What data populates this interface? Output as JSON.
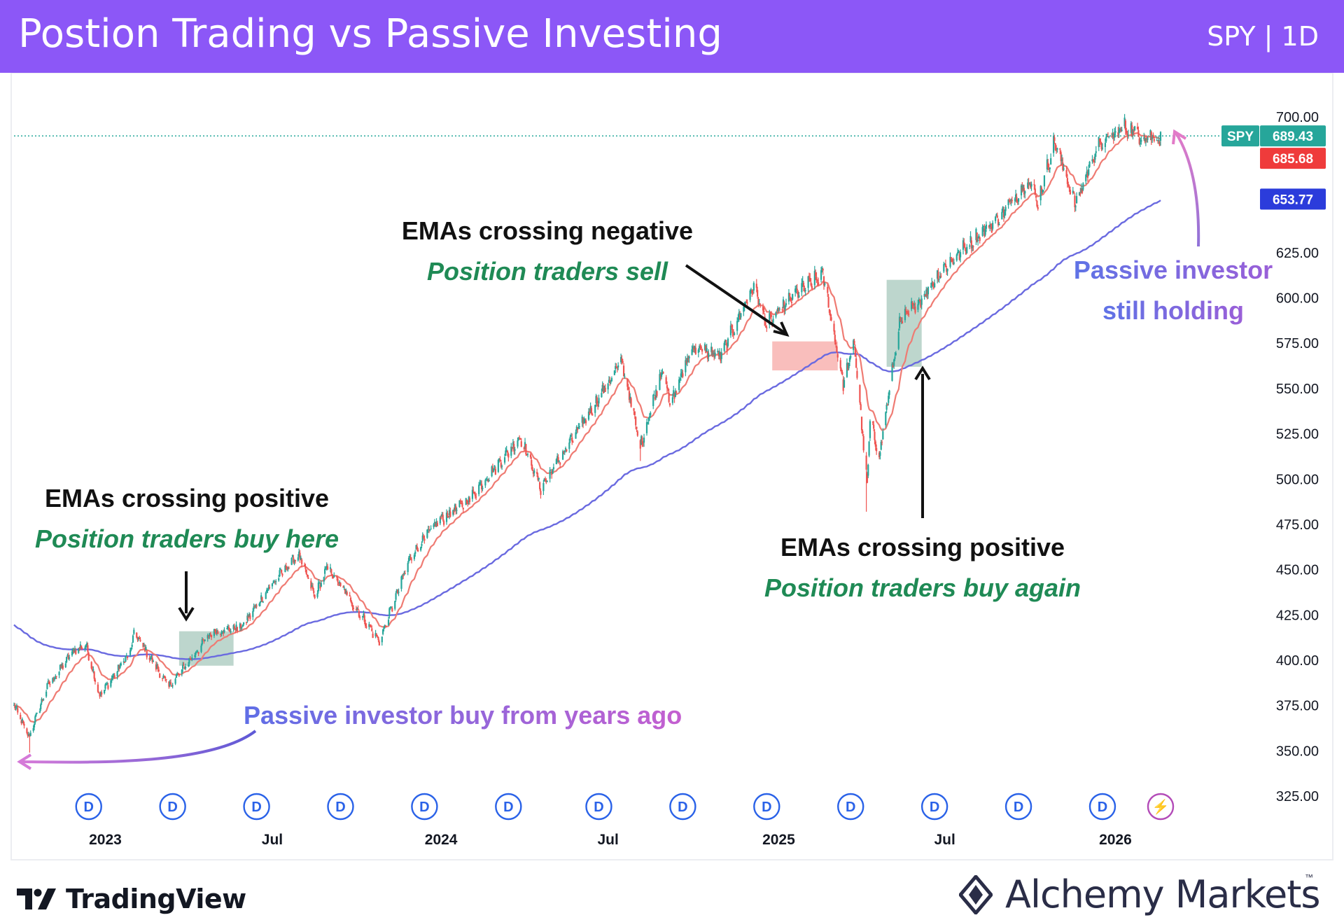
{
  "header": {
    "title": "Postion Trading vs Passive Investing",
    "ticker": "SPY | 1D"
  },
  "colors": {
    "header_bg": "#8c57f7",
    "price_up": "#26a69a",
    "price_down": "#ef5350",
    "ema_fast": "#ef7b73",
    "ema_slow": "#6a6ae0",
    "green_text": "#1f8a55",
    "passive_text": "#8a62d8"
  },
  "chart_data": {
    "type": "candlestick",
    "symbol": "SPY",
    "interval": "1D",
    "ylim": [
      320,
      715
    ],
    "y_ticks": [
      "700.00",
      "625.00",
      "600.00",
      "575.00",
      "550.00",
      "525.00",
      "500.00",
      "475.00",
      "450.00",
      "425.00",
      "400.00",
      "375.00",
      "350.00",
      "325.00"
    ],
    "x_ticks": [
      "2023",
      "Jul",
      "2024",
      "Jul",
      "2025",
      "Jul",
      "2026"
    ],
    "x_tick_dates": [
      "2023-01-03",
      "2023-07-03",
      "2024-01-02",
      "2024-07-01",
      "2025-01-02",
      "2025-07-01",
      "2026-01-02"
    ],
    "x_range": [
      "2022-09-26",
      "2026-02-20"
    ],
    "price_path": [
      [
        "2022-09-26",
        375
      ],
      [
        "2022-10-12",
        357
      ],
      [
        "2022-11-01",
        385
      ],
      [
        "2022-11-30",
        405
      ],
      [
        "2022-12-13",
        408
      ],
      [
        "2022-12-28",
        380
      ],
      [
        "2023-01-31",
        405
      ],
      [
        "2023-02-03",
        415
      ],
      [
        "2023-03-13",
        385
      ],
      [
        "2023-04-28",
        415
      ],
      [
        "2023-05-31",
        418
      ],
      [
        "2023-06-30",
        440
      ],
      [
        "2023-07-31",
        458
      ],
      [
        "2023-08-18",
        435
      ],
      [
        "2023-09-01",
        451
      ],
      [
        "2023-10-27",
        410
      ],
      [
        "2023-11-30",
        457
      ],
      [
        "2023-12-29",
        476
      ],
      [
        "2024-01-31",
        488
      ],
      [
        "2024-03-28",
        523
      ],
      [
        "2024-04-19",
        495
      ],
      [
        "2024-05-31",
        528
      ],
      [
        "2024-07-16",
        565
      ],
      [
        "2024-08-05",
        518
      ],
      [
        "2024-08-30",
        563
      ],
      [
        "2024-09-06",
        540
      ],
      [
        "2024-09-30",
        573
      ],
      [
        "2024-10-31",
        568
      ],
      [
        "2024-12-06",
        607
      ],
      [
        "2024-12-20",
        585
      ],
      [
        "2025-01-21",
        603
      ],
      [
        "2025-02-19",
        613
      ],
      [
        "2025-03-13",
        553
      ],
      [
        "2025-03-25",
        575
      ],
      [
        "2025-04-08",
        496
      ],
      [
        "2025-04-11",
        533
      ],
      [
        "2025-04-21",
        513
      ],
      [
        "2025-05-13",
        586
      ],
      [
        "2025-06-10",
        603
      ],
      [
        "2025-06-30",
        617
      ],
      [
        "2025-07-31",
        632
      ],
      [
        "2025-08-29",
        645
      ],
      [
        "2025-09-30",
        666
      ],
      [
        "2025-10-10",
        653
      ],
      [
        "2025-10-28",
        687
      ],
      [
        "2025-11-20",
        652
      ],
      [
        "2025-12-12",
        683
      ],
      [
        "2026-01-12",
        695
      ],
      [
        "2026-01-30",
        690
      ],
      [
        "2026-02-20",
        689
      ]
    ],
    "low_spikes": [
      [
        "2025-04-07",
        482
      ],
      [
        "2024-08-05",
        510
      ],
      [
        "2023-10-27",
        409
      ],
      [
        "2022-10-13",
        349
      ]
    ],
    "ema_fast_period": 20,
    "ema_slow_period": 200,
    "ema_slow_start": 420,
    "price_labels": {
      "symbol": "SPY",
      "last": "689.43",
      "ema_fast": "685.68",
      "ema_slow": "653.77"
    },
    "highlight_zones": [
      {
        "kind": "positive",
        "from": "2023-03-24",
        "to": "2023-05-22",
        "y_from": 397,
        "y_to": 416
      },
      {
        "kind": "negative",
        "from": "2024-12-26",
        "to": "2025-03-07",
        "y_from": 560,
        "y_to": 576
      },
      {
        "kind": "positive",
        "from": "2025-04-29",
        "to": "2025-06-06",
        "y_from": 562,
        "y_to": 610
      }
    ],
    "event_dates": [
      "2022-12-16",
      "2023-03-17",
      "2023-06-16",
      "2023-09-15",
      "2023-12-15",
      "2024-03-15",
      "2024-06-21",
      "2024-09-20",
      "2024-12-20",
      "2025-03-21",
      "2025-06-20",
      "2025-09-19",
      "2025-12-19",
      "2026-02-20"
    ],
    "event_marks": [
      "D",
      "D",
      "D",
      "D",
      "D",
      "D",
      "D",
      "D",
      "D",
      "D",
      "D",
      "D",
      "D",
      "⚡"
    ],
    "annotations": [
      {
        "title": "EMAs crossing positive",
        "subtitle": "Position traders buy here"
      },
      {
        "title": "EMAs crossing negative",
        "subtitle": "Position traders sell"
      },
      {
        "title": "EMAs crossing positive",
        "subtitle": "Position traders buy again"
      },
      {
        "title": "Passive investor buy from years ago"
      },
      {
        "title": "Passive investor",
        "subtitle": "still holding"
      }
    ],
    "grid": false
  },
  "footer": {
    "tradingview": "TradingView",
    "alchemy": "Alchemy Markets",
    "trademark": "™"
  }
}
